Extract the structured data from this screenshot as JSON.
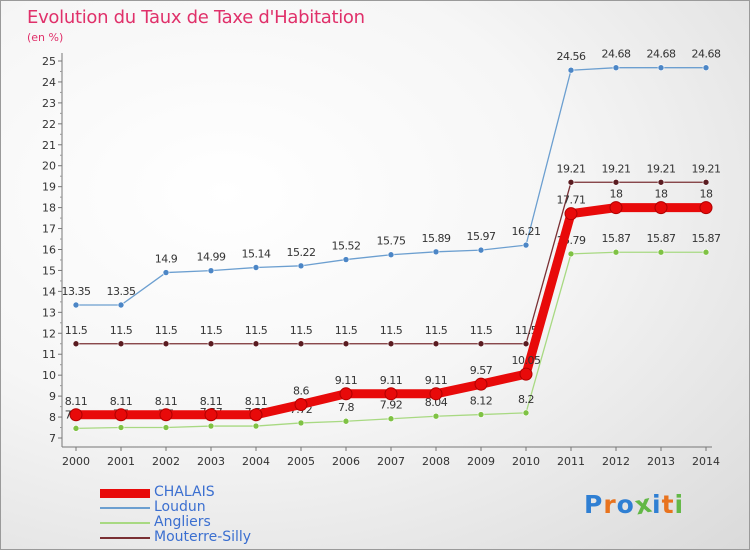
{
  "title": "Evolution du Taux de Taxe d'Habitation",
  "subtitle": "(en %)",
  "logo": {
    "text": "Proxiti",
    "colors": [
      "#2f7fd3",
      "#e8731e",
      "#2f7fd3",
      "#62b846",
      "#2f7fd3",
      "#e8731e",
      "#62b846"
    ]
  },
  "chart_data": {
    "type": "line",
    "x": [
      "2000",
      "2001",
      "2002",
      "2003",
      "2004",
      "2005",
      "2006",
      "2007",
      "2008",
      "2009",
      "2010",
      "2011",
      "2012",
      "2013",
      "2014"
    ],
    "yticks": [
      "7",
      "8",
      "9",
      "10",
      "11",
      "12",
      "13",
      "14",
      "15",
      "16",
      "17",
      "18",
      "19",
      "20",
      "21",
      "22",
      "23",
      "24",
      "25"
    ],
    "ylim": [
      7,
      25
    ],
    "grid": false,
    "legend_position": "bottom-left",
    "series": [
      {
        "name": "Loudun",
        "color": "#6c9fd0",
        "marker": "#4c86c6",
        "values": [
          13.35,
          13.35,
          14.9,
          14.99,
          15.14,
          15.22,
          15.52,
          15.75,
          15.89,
          15.97,
          16.21,
          24.56,
          24.68,
          24.68,
          24.68
        ],
        "labels": [
          "13.35",
          "13.35",
          "14.9",
          "14.99",
          "15.14",
          "15.22",
          "15.52",
          "15.75",
          "15.89",
          "15.97",
          "16.21",
          "24.56",
          "24.68",
          "24.68",
          "24.68"
        ]
      },
      {
        "name": "Mouterre-Silly",
        "color": "#7a3034",
        "marker": "#5a1b20",
        "values": [
          11.5,
          11.5,
          11.5,
          11.5,
          11.5,
          11.5,
          11.5,
          11.5,
          11.5,
          11.5,
          11.5,
          19.21,
          19.21,
          19.21,
          19.21
        ],
        "labels": [
          "11.5",
          "11.5",
          "11.5",
          "11.5",
          "11.5",
          "11.5",
          "11.5",
          "11.5",
          "11.5",
          "11.5",
          "11.5",
          "19.21",
          "19.21",
          "19.21",
          "19.21"
        ]
      },
      {
        "name": "Angliers",
        "color": "#a8d982",
        "marker": "#7fc244",
        "values": [
          7.46,
          7.5,
          7.5,
          7.57,
          7.57,
          7.72,
          7.8,
          7.92,
          8.04,
          8.12,
          8.2,
          15.79,
          15.87,
          15.87,
          15.87
        ],
        "labels": [
          "7.46",
          "7.5",
          "7.5",
          "7.57",
          "7.57",
          "7.72",
          "7.8",
          "7.92",
          "8.04",
          "8.12",
          "8.2",
          "15.79",
          "15.87",
          "15.87",
          "15.87"
        ]
      },
      {
        "name": "CHALAIS",
        "color": "#e80a0a",
        "marker": "#e80a0a",
        "values": [
          8.11,
          8.11,
          8.11,
          8.11,
          8.11,
          8.6,
          9.11,
          9.11,
          9.11,
          9.57,
          10.05,
          17.71,
          18,
          18,
          18
        ],
        "labels": [
          "8.11",
          "8.11",
          "8.11",
          "8.11",
          "8.11",
          "8.6",
          "9.11",
          "9.11",
          "9.11",
          "9.57",
          "10.05",
          "17.71",
          "18",
          "18",
          "18"
        ]
      }
    ],
    "legend_order": [
      "CHALAIS",
      "Loudun",
      "Angliers",
      "Mouterre-Silly"
    ]
  }
}
